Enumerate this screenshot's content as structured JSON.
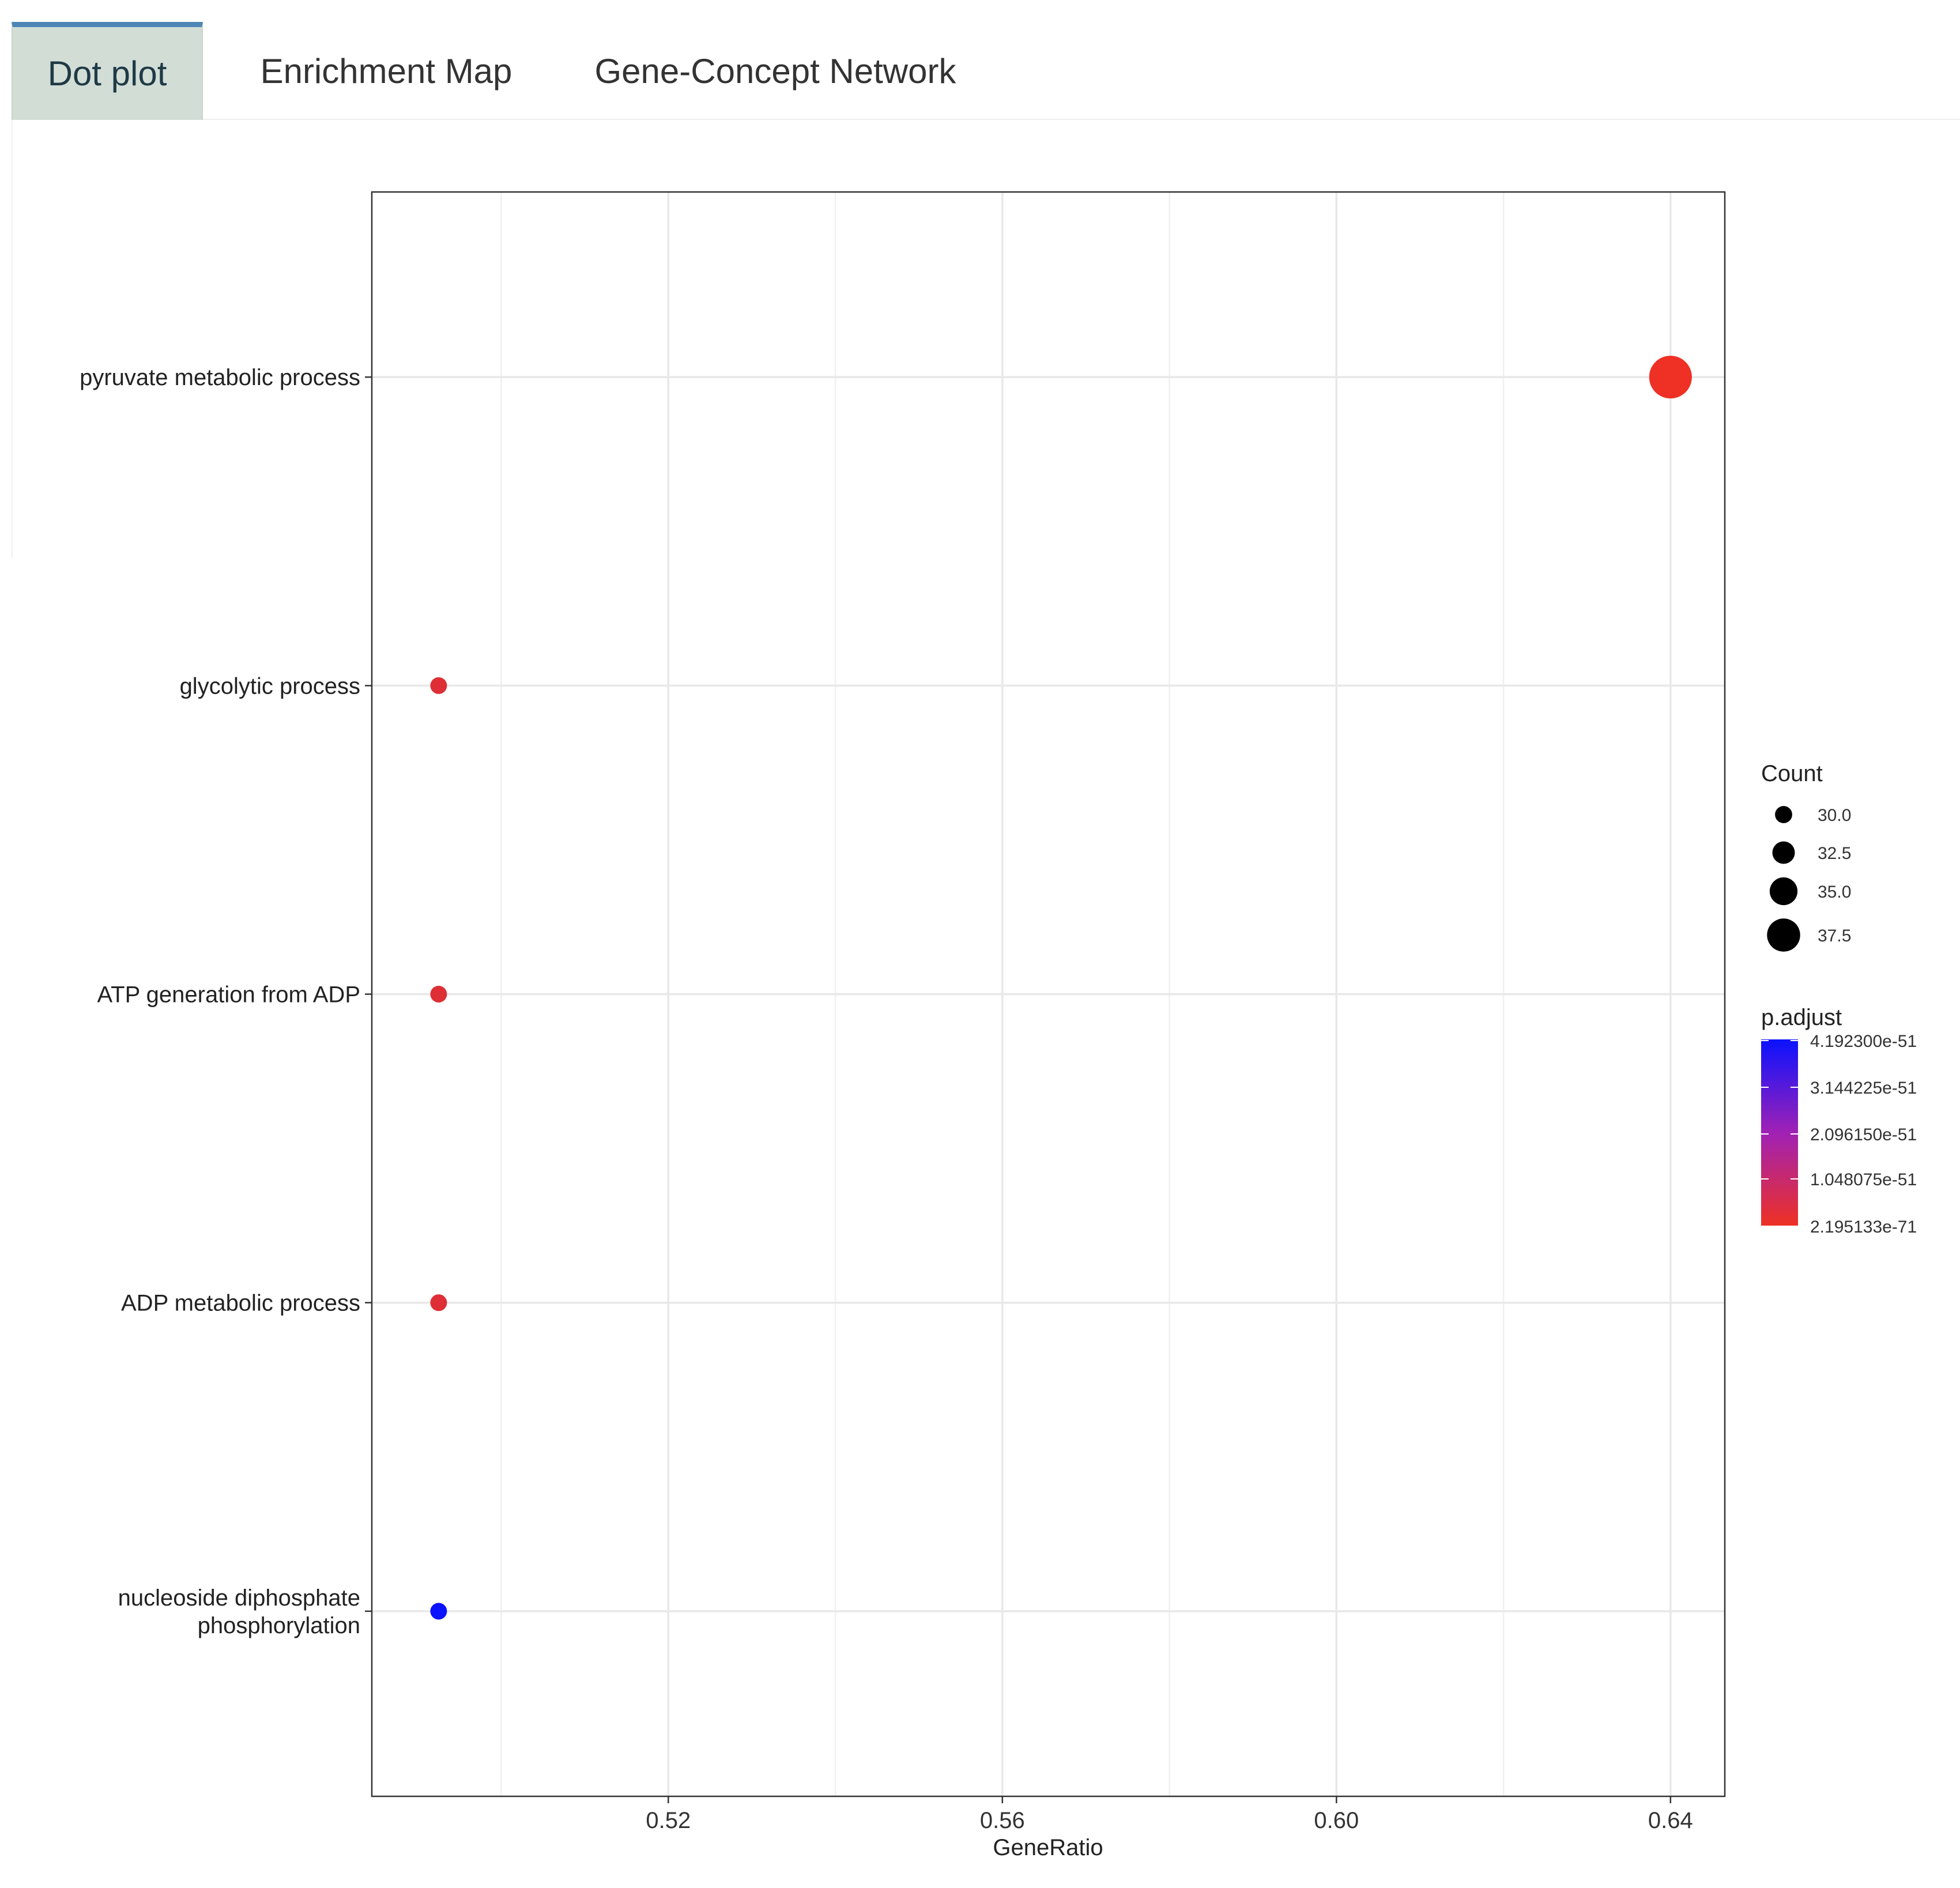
{
  "tabs": [
    {
      "label": "Dot plot",
      "active": true
    },
    {
      "label": "Enrichment Map",
      "active": false
    },
    {
      "label": "Gene-Concept Network",
      "active": false
    }
  ],
  "chart_data": {
    "type": "scatter",
    "title": "",
    "xlabel": "GeneRatio",
    "ylabel": "",
    "xlim": [
      0.4845,
      0.6465
    ],
    "xticks": [
      "0.52",
      "0.56",
      "0.60",
      "0.64"
    ],
    "xtick_values": [
      0.52,
      0.56,
      0.6,
      0.64
    ],
    "grid": true,
    "categories": [
      "pyruvate metabolic process",
      "glycolytic process",
      "ATP generation from ADP",
      "ADP metabolic process",
      "nucleoside diphosphate\nphosphorylation"
    ],
    "points": [
      {
        "term": "pyruvate metabolic process",
        "gene_ratio": 0.64,
        "count": 40,
        "p_adjust": 2.195133e-71
      },
      {
        "term": "glycolytic process",
        "gene_ratio": 0.4925,
        "count": 29,
        "p_adjust": 1e-60
      },
      {
        "term": "ATP generation from ADP",
        "gene_ratio": 0.4925,
        "count": 29,
        "p_adjust": 1e-60
      },
      {
        "term": "ADP metabolic process",
        "gene_ratio": 0.4925,
        "count": 29,
        "p_adjust": 1e-60
      },
      {
        "term": "nucleoside diphosphate\nphosphorylation",
        "gene_ratio": 0.4925,
        "count": 29,
        "p_adjust": 4.1923e-51
      }
    ],
    "legend_count": {
      "title": "Count",
      "entries": [
        "30.0",
        "32.5",
        "35.0",
        "37.5"
      ],
      "values": [
        30.0,
        32.5,
        35.0,
        37.5
      ]
    },
    "legend_padjust": {
      "title": "p.adjust",
      "labels": [
        "4.192300e-51",
        "3.144225e-51",
        "2.096150e-51",
        "1.048075e-51",
        "2.195133e-71"
      ],
      "color_high": "#0b12ff",
      "color_low": "#ee3124"
    },
    "legend_placement": "right"
  }
}
